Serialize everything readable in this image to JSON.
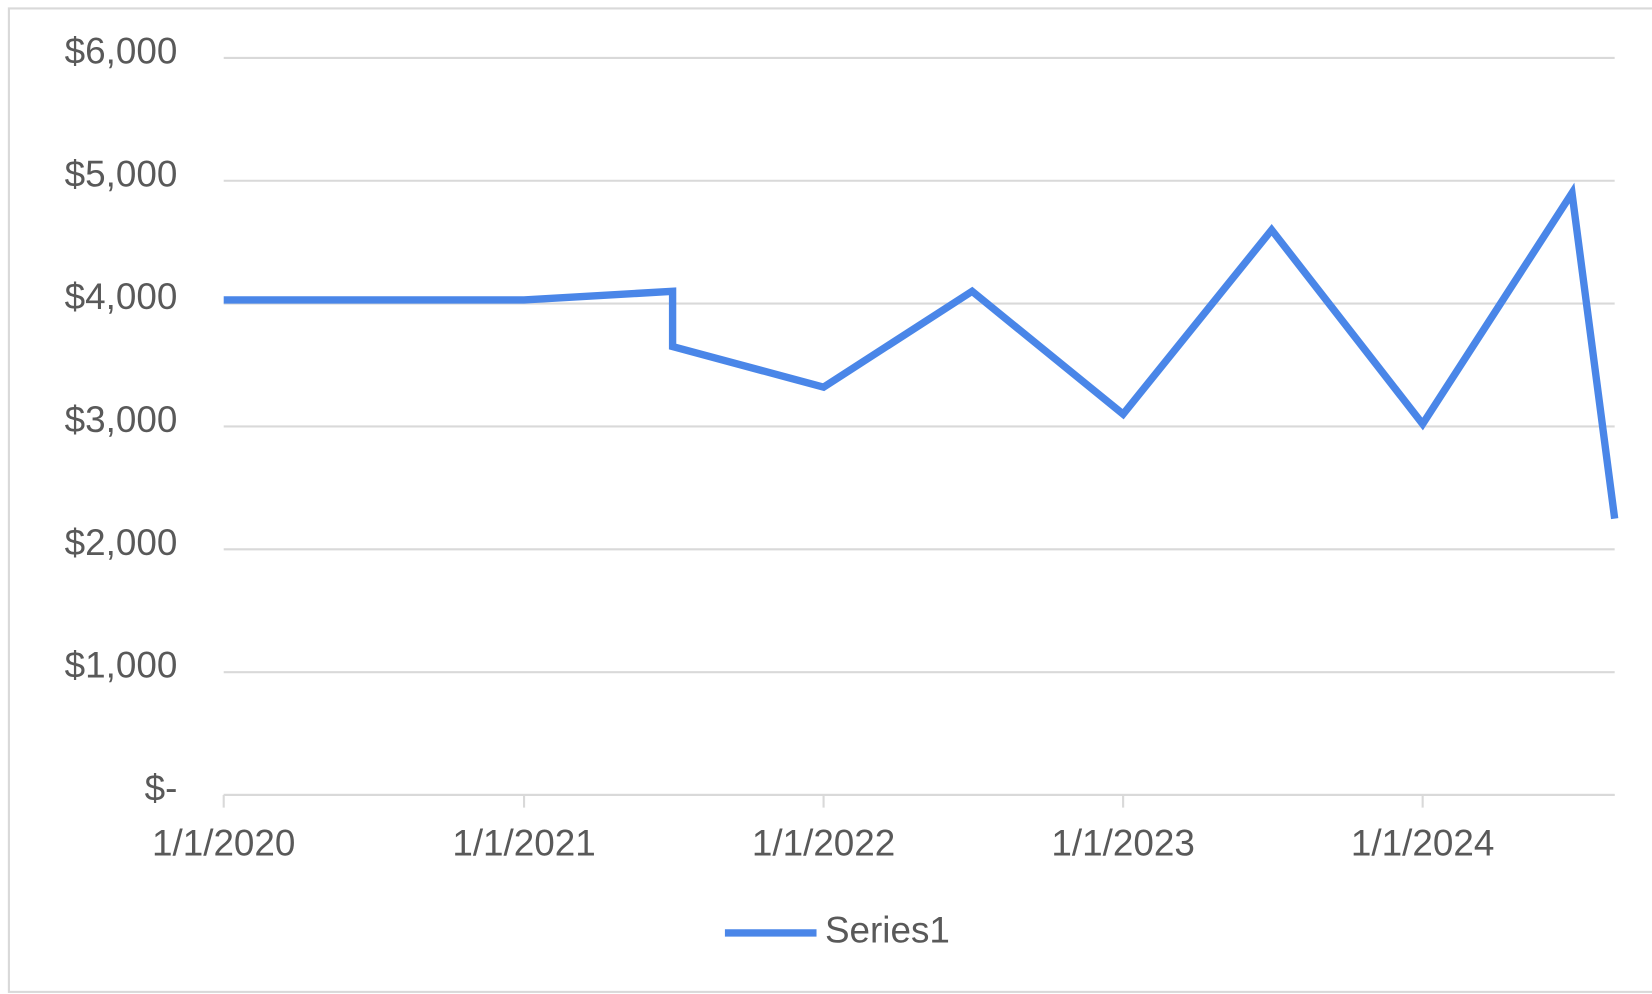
{
  "chart_data": {
    "type": "line",
    "x": [
      "2020-01-01",
      "2021-01-01",
      "2021-07-01",
      "2021-07-01",
      "2022-01-01",
      "2022-07-01",
      "2023-01-01",
      "2023-07-01",
      "2024-01-01",
      "2024-07-01",
      "2024-08-22"
    ],
    "series": [
      {
        "name": "Series1",
        "color": "#4a86e8",
        "values": [
          4030,
          4030,
          4100,
          3650,
          3320,
          4100,
          3100,
          4600,
          3020,
          4900,
          2250
        ]
      }
    ],
    "xlim": [
      "2020-01-01",
      "2024-08-22"
    ],
    "xticks": [
      {
        "value": "2020-01-01",
        "label": "1/1/2020"
      },
      {
        "value": "2021-01-01",
        "label": "1/1/2021"
      },
      {
        "value": "2022-01-01",
        "label": "1/1/2022"
      },
      {
        "value": "2023-01-01",
        "label": "1/1/2023"
      },
      {
        "value": "2024-01-01",
        "label": "1/1/2024"
      }
    ],
    "ylim": [
      0,
      6000
    ],
    "yticks": [
      {
        "value": 0,
        "label": "$-"
      },
      {
        "value": 1000,
        "label": "$1,000"
      },
      {
        "value": 2000,
        "label": "$2,000"
      },
      {
        "value": 3000,
        "label": "$3,000"
      },
      {
        "value": 4000,
        "label": "$4,000"
      },
      {
        "value": 5000,
        "label": "$5,000"
      },
      {
        "value": 6000,
        "label": "$6,000"
      }
    ],
    "grid": true,
    "legend": "bottom"
  }
}
